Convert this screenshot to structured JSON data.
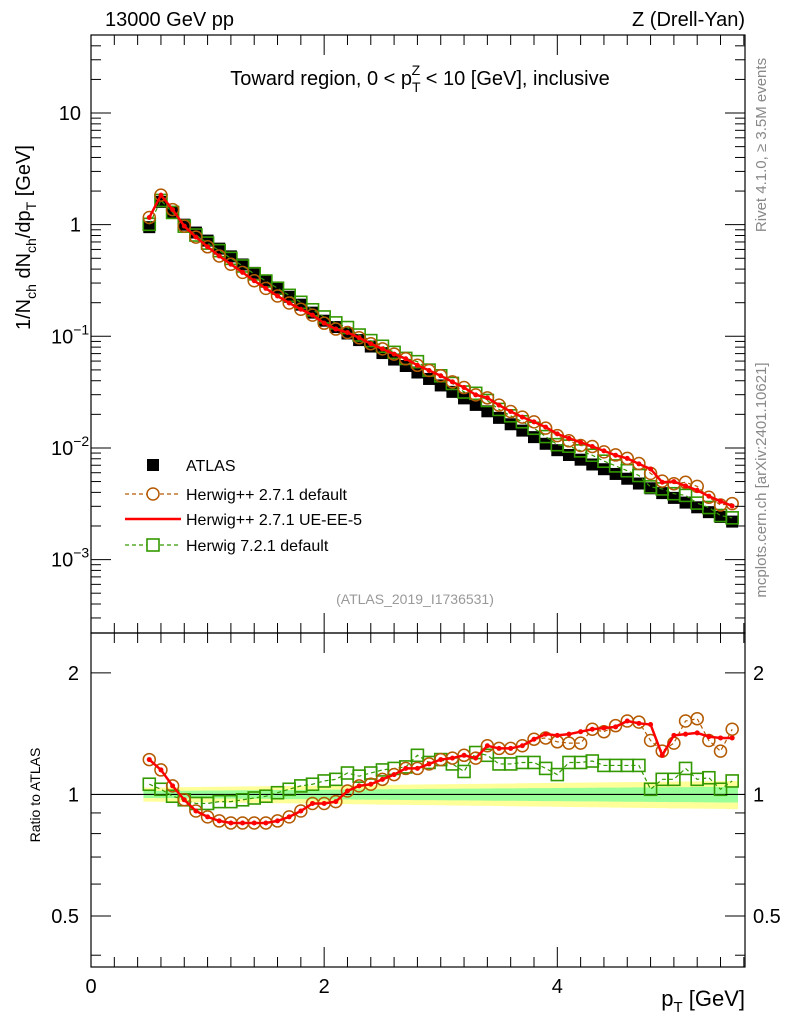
{
  "header": {
    "left": "13000 GeV pp",
    "right": "Z (Drell-Yan)"
  },
  "side_labels": {
    "rivet": "Rivet 4.1.0, ≥ 3.5M events",
    "mcplots": "mcplots.cern.ch [arXiv:2401.10621]"
  },
  "chart_data": [
    {
      "type": "scatter",
      "panel": "main",
      "title_parts": {
        "pre": "Toward region, 0 < p",
        "sub": "T",
        "sup": "Z",
        "post": " < 10 [GeV], inclusive"
      },
      "ylabel_parts": {
        "a": "1/N",
        "a_sub": "ch",
        "b": " dN",
        "b_sub": "ch",
        "c": "/dp",
        "c_sub": "T",
        "d": " [GeV]"
      },
      "yscale": "log",
      "ylim": [
        0.00022,
        50
      ],
      "xlim": [
        0,
        5.61
      ],
      "ytick_labels": [
        {
          "value": 10,
          "base": "10",
          "exp": ""
        },
        {
          "value": 1,
          "base": "1",
          "exp": ""
        },
        {
          "value": 0.1,
          "base": "10",
          "exp": "−1"
        },
        {
          "value": 0.01,
          "base": "10",
          "exp": "−2"
        },
        {
          "value": 0.001,
          "base": "10",
          "exp": "−3"
        }
      ],
      "watermark": "(ATLAS_2019_I1736531)",
      "legend_position": "lower-left",
      "x": [
        0.5,
        0.6,
        0.7,
        0.8,
        0.9,
        1.0,
        1.1,
        1.2,
        1.3,
        1.4,
        1.5,
        1.6,
        1.7,
        1.8,
        1.9,
        2.0,
        2.1,
        2.2,
        2.3,
        2.4,
        2.5,
        2.6,
        2.7,
        2.8,
        2.9,
        3.0,
        3.1,
        3.2,
        3.3,
        3.4,
        3.5,
        3.6,
        3.7,
        3.8,
        3.9,
        4.0,
        4.1,
        4.2,
        4.3,
        4.4,
        4.5,
        4.6,
        4.7,
        4.8,
        4.9,
        5.0,
        5.1,
        5.2,
        5.3,
        5.4,
        5.5
      ],
      "series": [
        {
          "name": "ATLAS",
          "color": "#000000",
          "marker": "filled-square",
          "values": [
            0.95,
            1.6,
            1.3,
            1.0,
            0.85,
            0.72,
            0.61,
            0.52,
            0.44,
            0.37,
            0.316,
            0.267,
            0.226,
            0.192,
            0.163,
            0.138,
            0.121,
            0.106,
            0.0925,
            0.081,
            0.0708,
            0.0619,
            0.0542,
            0.0474,
            0.0415,
            0.0363,
            0.0318,
            0.0278,
            0.0243,
            0.0213,
            0.0186,
            0.0163,
            0.0143,
            0.0125,
            0.0109,
            0.00955,
            0.00865,
            0.00785,
            0.00711,
            0.00645,
            0.00585,
            0.0053,
            0.0048,
            0.00435,
            0.00394,
            0.00357,
            0.00324,
            0.00294,
            0.00266,
            0.00241,
            0.00219
          ]
        },
        {
          "name": "Herwig++ 2.7.1 default",
          "color": "#b35900",
          "marker": "open-circle",
          "line": "dashed"
        },
        {
          "name": "Herwig++ 2.7.1 UE-EE-5",
          "color": "#ff0000",
          "marker": "dot",
          "line": "solid"
        },
        {
          "name": "Herwig 7.2.1 default",
          "color": "#339900",
          "marker": "open-square",
          "line": "dashed"
        }
      ]
    },
    {
      "type": "line",
      "panel": "ratio",
      "ylabel": "Ratio to ATLAS",
      "xlabel_parts": {
        "main": "p",
        "sub": "T",
        "post": " [GeV]"
      },
      "yscale": "log",
      "ylim": [
        0.374,
        2.51
      ],
      "xlim": [
        0,
        5.61
      ],
      "xtick_labels": [
        "0",
        "2",
        "4"
      ],
      "xticks": [
        0,
        2,
        4
      ],
      "ytick_labels": [
        "0.5",
        "1",
        "2"
      ],
      "yticks": [
        0.5,
        1,
        2
      ],
      "reference_line": 1,
      "band": {
        "inner_color": "#99ff99",
        "outer_color": "#ffff99",
        "inner_halfwidth": [
          0.02,
          0.045
        ],
        "outer_halfwidth": [
          0.04,
          0.08
        ]
      },
      "series": [
        {
          "name": "Herwig++ 2.7.1 default",
          "color": "#b35900",
          "values": [
            1.22,
            1.15,
            1.05,
            0.97,
            0.91,
            0.88,
            0.86,
            0.85,
            0.85,
            0.85,
            0.85,
            0.86,
            0.88,
            0.91,
            0.95,
            0.95,
            0.96,
            1.02,
            1.05,
            1.06,
            1.09,
            1.12,
            1.16,
            1.16,
            1.19,
            1.22,
            1.23,
            1.25,
            1.23,
            1.32,
            1.3,
            1.3,
            1.32,
            1.37,
            1.38,
            1.35,
            1.34,
            1.34,
            1.45,
            1.43,
            1.48,
            1.52,
            1.51,
            1.36,
            1.28,
            1.34,
            1.52,
            1.54,
            1.36,
            1.28,
            1.45
          ]
        },
        {
          "name": "Herwig++ 2.7.1 UE-EE-5",
          "color": "#ff0000",
          "values": [
            1.22,
            1.15,
            1.05,
            0.97,
            0.91,
            0.88,
            0.86,
            0.85,
            0.85,
            0.85,
            0.85,
            0.86,
            0.88,
            0.91,
            0.95,
            0.95,
            0.96,
            1.02,
            1.05,
            1.06,
            1.09,
            1.12,
            1.16,
            1.16,
            1.19,
            1.22,
            1.23,
            1.25,
            1.23,
            1.32,
            1.3,
            1.3,
            1.32,
            1.37,
            1.41,
            1.4,
            1.41,
            1.43,
            1.45,
            1.46,
            1.47,
            1.52,
            1.5,
            1.49,
            1.25,
            1.4,
            1.41,
            1.42,
            1.39,
            1.38,
            1.38
          ]
        },
        {
          "name": "Herwig 7.2.1 default",
          "color": "#339900",
          "values": [
            1.06,
            1.03,
            0.99,
            0.97,
            0.95,
            0.95,
            0.96,
            0.96,
            0.97,
            0.98,
            0.99,
            1.01,
            1.03,
            1.05,
            1.06,
            1.08,
            1.09,
            1.13,
            1.11,
            1.13,
            1.15,
            1.16,
            1.17,
            1.25,
            1.2,
            1.22,
            1.19,
            1.14,
            1.27,
            1.25,
            1.19,
            1.19,
            1.2,
            1.2,
            1.16,
            1.12,
            1.2,
            1.2,
            1.21,
            1.18,
            1.18,
            1.18,
            1.18,
            1.03,
            1.09,
            1.09,
            1.16,
            1.09,
            1.1,
            1.03,
            1.08
          ]
        }
      ]
    }
  ]
}
